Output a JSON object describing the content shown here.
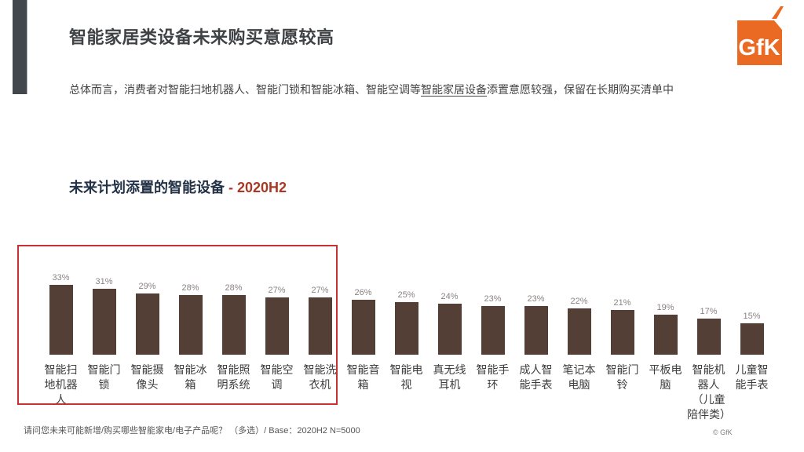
{
  "header": {
    "title": "智能家居类设备未来购买意愿较高",
    "subtitle_pre": "总体而言，消费者对智能扫地机器人、智能门锁和智能冰箱、智能空调等",
    "subtitle_underlined": "智能家居设备",
    "subtitle_post": "添置意愿较强，保留在长期购买清单中"
  },
  "logo": {
    "text": "GfK"
  },
  "chart_header": {
    "title": "未来计划添置的智能设备",
    "suffix": " - 2020H2"
  },
  "chart_data": {
    "type": "bar",
    "title": "未来计划添置的智能设备 - 2020H2",
    "categories": [
      "智能扫地机器人",
      "智能门锁",
      "智能摄像头",
      "智能冰箱",
      "智能照明系统",
      "智能空调",
      "智能洗衣机",
      "智能音箱",
      "智能电视",
      "真无线耳机",
      "智能手环",
      "成人智能手表",
      "笔记本电脑",
      "智能门铃",
      "平板电脑",
      "智能机器人（儿童陪伴类）",
      "儿童智能手表"
    ],
    "category_labels_wrapped": [
      "智能扫\n地机器\n人",
      "智能门\n锁",
      "智能摄\n像头",
      "智能冰\n箱",
      "智能照\n明系统",
      "智能空\n调",
      "智能洗\n衣机",
      "智能音\n箱",
      "智能电\n视",
      "真无线\n耳机",
      "智能手\n环",
      "成人智\n能手表",
      "笔记本\n电脑",
      "智能门\n铃",
      "平板电\n脑",
      "智能机\n器人\n（儿童\n陪伴类）",
      "儿童智\n能手表"
    ],
    "values": [
      33,
      31,
      29,
      28,
      28,
      27,
      27,
      26,
      25,
      24,
      23,
      23,
      22,
      21,
      19,
      17,
      15
    ],
    "unit": "%",
    "ylim": [
      0,
      40
    ],
    "grid": false,
    "legend": false,
    "value_labels_shown": true,
    "highlighted_categories": [
      "智能扫地机器人",
      "智能门锁",
      "智能摄像头",
      "智能冰箱",
      "智能照明系统",
      "智能空调",
      "智能洗衣机"
    ]
  },
  "footer": {
    "note": "请问您未来可能新增/购买哪些智能家电/电子产品呢？ （多选）/ Base：2020H2 N=5000",
    "copyright": "© GfK"
  },
  "colors": {
    "accent_dark": "#42464D",
    "bar_brown": "#543F37",
    "highlight_red": "#C9302F",
    "title_navy": "#233247",
    "suffix_red": "#A83A23",
    "logo_orange": "#EB6A23"
  }
}
